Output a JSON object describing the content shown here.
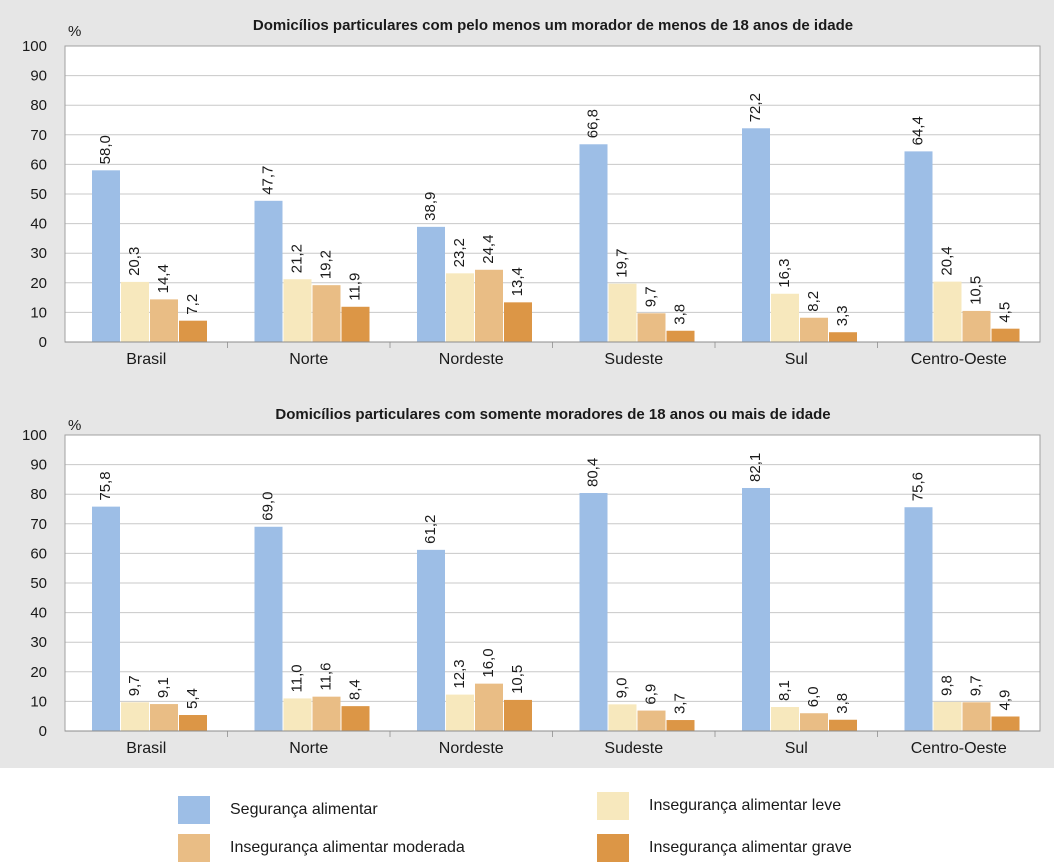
{
  "categories": [
    "Brasil",
    "Norte",
    "Nordeste",
    "Sudeste",
    "Sul",
    "Centro-Oeste"
  ],
  "unit_label": "%",
  "legend": [
    {
      "name": "Segurança alimentar",
      "color": "#9dbee6"
    },
    {
      "name": "Insegurança alimentar leve",
      "color": "#f7e8bd"
    },
    {
      "name": "Insegurança alimentar moderada",
      "color": "#e9bd85"
    },
    {
      "name": "Insegurança alimentar grave",
      "color": "#dc9646"
    }
  ],
  "chart_data": [
    {
      "type": "bar",
      "title": "Domicílios particulares com pelo menos um morador de menos de 18 anos de idade",
      "ylabel": "%",
      "ylim": [
        0,
        100
      ],
      "yticks": [
        0,
        10,
        20,
        30,
        40,
        50,
        60,
        70,
        80,
        90,
        100
      ],
      "grid": true,
      "categories": [
        "Brasil",
        "Norte",
        "Nordeste",
        "Sudeste",
        "Sul",
        "Centro-Oeste"
      ],
      "series": [
        {
          "name": "Segurança alimentar",
          "values": [
            58.0,
            47.7,
            38.9,
            66.8,
            72.2,
            64.4
          ],
          "labels": [
            "58,0",
            "47,7",
            "38,9",
            "66,8",
            "72,2",
            "64,4"
          ]
        },
        {
          "name": "Insegurança alimentar leve",
          "values": [
            20.3,
            21.2,
            23.2,
            19.7,
            16.3,
            20.4
          ],
          "labels": [
            "20,3",
            "21,2",
            "23,2",
            "19,7",
            "16,3",
            "20,4"
          ]
        },
        {
          "name": "Insegurança alimentar moderada",
          "values": [
            14.4,
            19.2,
            24.4,
            9.7,
            8.2,
            10.5
          ],
          "labels": [
            "14,4",
            "19,2",
            "24,4",
            "9,7",
            "8,2",
            "10,5"
          ]
        },
        {
          "name": "Insegurança alimentar grave",
          "values": [
            7.2,
            11.9,
            13.4,
            3.8,
            3.3,
            4.5
          ],
          "labels": [
            "7,2",
            "11,9",
            "13,4",
            "3,8",
            "3,3",
            "4,5"
          ]
        }
      ]
    },
    {
      "type": "bar",
      "title": "Domicílios particulares com somente moradores de 18 anos ou mais de idade",
      "ylabel": "%",
      "ylim": [
        0,
        100
      ],
      "yticks": [
        0,
        10,
        20,
        30,
        40,
        50,
        60,
        70,
        80,
        90,
        100
      ],
      "grid": true,
      "categories": [
        "Brasil",
        "Norte",
        "Nordeste",
        "Sudeste",
        "Sul",
        "Centro-Oeste"
      ],
      "series": [
        {
          "name": "Segurança alimentar",
          "values": [
            75.8,
            69.0,
            61.2,
            80.4,
            82.1,
            75.6
          ],
          "labels": [
            "75,8",
            "69,0",
            "61,2",
            "80,4",
            "82,1",
            "75,6"
          ]
        },
        {
          "name": "Insegurança alimentar leve",
          "values": [
            9.7,
            11.0,
            12.3,
            9.0,
            8.1,
            9.8
          ],
          "labels": [
            "9,7",
            "11,0",
            "12,3",
            "9,0",
            "8,1",
            "9,8"
          ]
        },
        {
          "name": "Insegurança alimentar moderada",
          "values": [
            9.1,
            11.6,
            16.0,
            6.9,
            6.0,
            9.7
          ],
          "labels": [
            "9,1",
            "11,6",
            "16,0",
            "6,9",
            "6,0",
            "9,7"
          ]
        },
        {
          "name": "Insegurança alimentar grave",
          "values": [
            5.4,
            8.4,
            10.5,
            3.7,
            3.8,
            4.9
          ],
          "labels": [
            "5,4",
            "8,4",
            "10,5",
            "3,7",
            "3,8",
            "4,9"
          ]
        }
      ]
    }
  ]
}
